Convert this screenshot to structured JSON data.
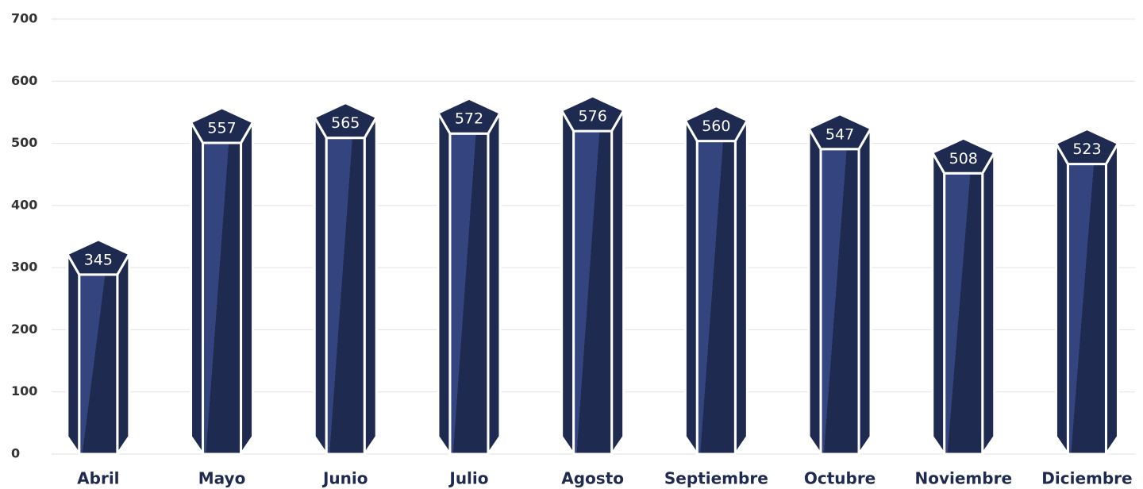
{
  "chart_data": {
    "type": "bar",
    "categories": [
      "Abril",
      "Mayo",
      "Junio",
      "Julio",
      "Agosto",
      "Septiembre",
      "Octubre",
      "Noviembre",
      "Diciembre"
    ],
    "values": [
      345,
      557,
      565,
      572,
      576,
      560,
      547,
      508,
      523
    ],
    "color": "#1f2a50",
    "ylim": [
      0,
      700
    ],
    "yticks": [
      0,
      100,
      200,
      300,
      400,
      500,
      600,
      700
    ],
    "grid": true
  }
}
